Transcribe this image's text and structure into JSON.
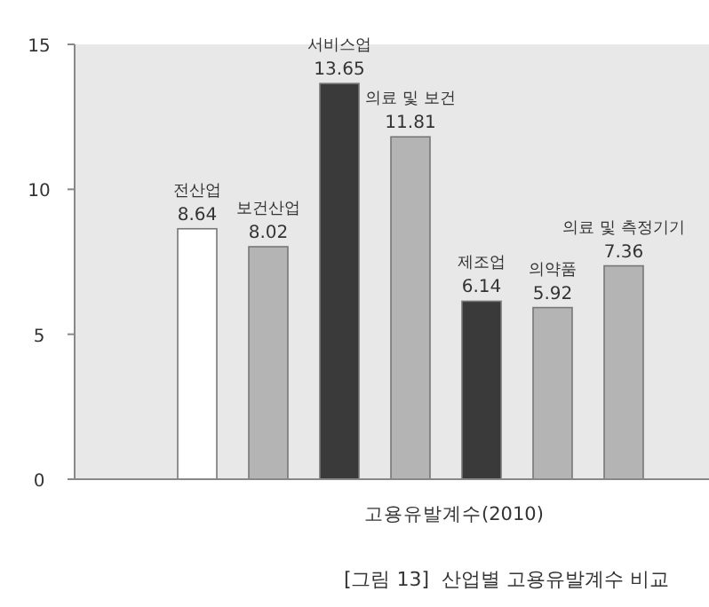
{
  "chart_data": {
    "type": "bar",
    "xlabel": "고용유발계수(2010)",
    "annotations": [
      "[그림 13]  산업별 고용유발계수 비교"
    ],
    "categories": [
      "전산업",
      "보건산업",
      "서비스업",
      "의료 및 보건",
      "제조업",
      "의약품",
      "의료 및 측정기기"
    ],
    "values": [
      8.64,
      8.02,
      13.65,
      11.81,
      6.14,
      5.92,
      7.36
    ],
    "colors": [
      "#ffffff",
      "#b4b4b4",
      "#3a3a3a",
      "#b4b4b4",
      "#3a3a3a",
      "#b4b4b4",
      "#b4b4b4"
    ],
    "ylim": [
      0,
      15
    ],
    "yticks": [
      0,
      5,
      10,
      15
    ],
    "data_labels": true,
    "grid": false
  }
}
